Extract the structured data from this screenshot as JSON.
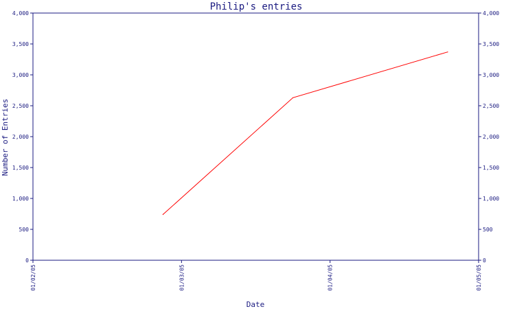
{
  "chart_data": {
    "type": "line",
    "title": "Philip's entries",
    "xlabel": "Date",
    "ylabel": "Number of Entries",
    "x_tick_labels": [
      "01/02/05",
      "01/03/05",
      "01/04/05",
      "01/05/05"
    ],
    "x_ticks": [
      "2005-01-02",
      "2005-01-03",
      "2005-01-04",
      "2005-01-05"
    ],
    "xlim": [
      "2005-01-02",
      "2005-01-05"
    ],
    "ylim": [
      0,
      4000
    ],
    "y_ticks": [
      0,
      500,
      1000,
      1500,
      2000,
      2500,
      3000,
      3500,
      4000
    ],
    "y_tick_labels": [
      "0",
      "500",
      "1,000",
      "1,500",
      "2,000",
      "2,500",
      "3,000",
      "3,500",
      "4,000"
    ],
    "y_axis_right": true,
    "grid": false,
    "legend": "none",
    "series": [
      {
        "x": [
          "2005-01-02T21:00",
          "2005-01-03T18:00",
          "2005-01-04T19:00"
        ],
        "values": [
          740,
          2630,
          3370
        ],
        "color": "#ff0000"
      }
    ],
    "colors": {
      "axis": "#1a1a80",
      "text": "#1a1a80",
      "line": "#ff0000"
    }
  }
}
